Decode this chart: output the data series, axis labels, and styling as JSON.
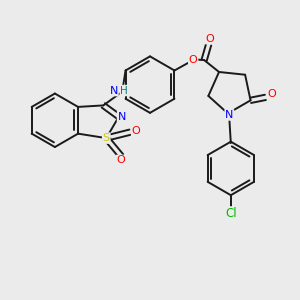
{
  "bg_color": "#ebebeb",
  "bond_color": "#1a1a1a",
  "atom_colors": {
    "N": "#0000ff",
    "O": "#ff0000",
    "S": "#cccc00",
    "Cl": "#00bb00",
    "HN": "#008080",
    "C": "#1a1a1a"
  },
  "lw": 1.4,
  "fs": 8.0
}
